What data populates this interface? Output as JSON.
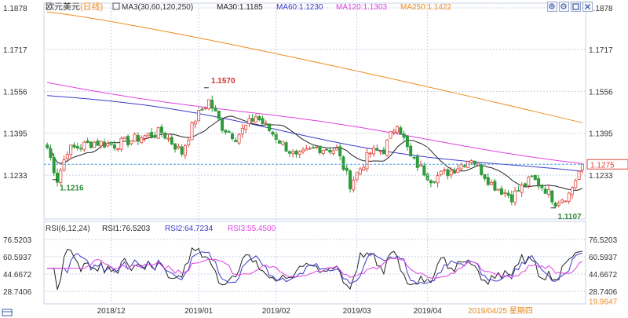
{
  "header": {
    "symbol": "欧元美元",
    "period": "(日线)",
    "indicator": "MA3(30,60,120,250)",
    "ma30_label": "MA30:1.1185",
    "ma60_label": "MA60:1.1230",
    "ma120_label": "MA120:1.1303",
    "ma250_label": "MA250:1.1422"
  },
  "colors": {
    "up": "#e0443c",
    "down": "#2e9a3a",
    "ma30": "#222222",
    "ma60": "#3a3ac8",
    "ma120": "#e040e0",
    "ma250": "#f08c1e",
    "rsi1": "#222222",
    "rsi2": "#3a3ac8",
    "rsi3": "#e040e0",
    "grid": "#c9d1e6",
    "current_price": "#e0443c",
    "annotation_high": "#d03030",
    "annotation_low": "#2e8a3a",
    "axis_text": "#333333"
  },
  "toolbar": {
    "icons": [
      "zoom-in-icon",
      "zoom-out-icon",
      "fullscreen-icon",
      "close-icon"
    ]
  },
  "rsi_header": {
    "params": "RSI(6,12,24)",
    "rsi1_label": "RSI1:76.5203",
    "rsi2_label": "RSI2:64.7234",
    "rsi3_label": "RSI3:55.4500"
  },
  "footer": {
    "date_label": "2019/04/25 星期四"
  },
  "chart_data": {
    "type": "candlestick",
    "price_axis": {
      "ticks": [
        1.1878,
        1.1717,
        1.1556,
        1.1395,
        1.1233
      ],
      "tick_labels": [
        "1.1878",
        "1.1717",
        "1.1556",
        "1.1395",
        "1.1233"
      ],
      "range": [
        1.107,
        1.189
      ]
    },
    "current_price": {
      "value": 1.1275,
      "label": "1.1275"
    },
    "annotations": [
      {
        "label": "1.1570",
        "value": 1.157,
        "index": 48
      },
      {
        "label": "1.1216",
        "value": 1.1216,
        "index": 3
      },
      {
        "label": "1.1107",
        "value": 1.1107,
        "index": 151
      }
    ],
    "x_labels": [
      "2018/12",
      "2019/01",
      "2019/02",
      "2019/03",
      "2019/04"
    ],
    "x_label_index": [
      19,
      45,
      68,
      92,
      113
    ],
    "candles_count": 160,
    "rsi_axis": {
      "ticks": [
        76.5203,
        60.5937,
        44.6672,
        28.7406,
        19.9647
      ],
      "tick_labels": [
        "76.5203",
        "60.5937",
        "44.6672",
        "28.7406",
        "19.9647"
      ],
      "range": [
        18,
        80
      ]
    }
  }
}
